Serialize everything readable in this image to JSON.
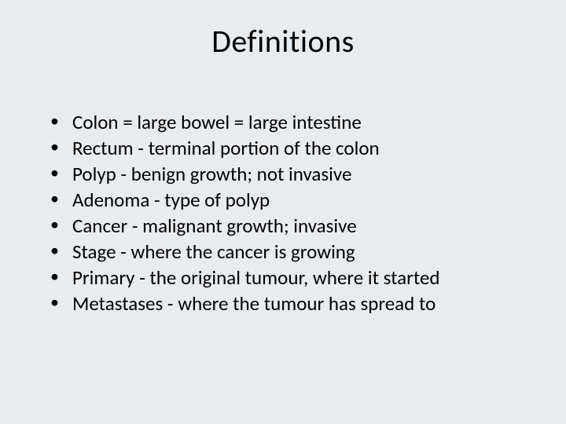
{
  "slide": {
    "background_color": "#e8ecef",
    "text_color": "#000000",
    "title": "Definitions",
    "title_fontsize": 40,
    "body_fontsize": 25,
    "bullets": [
      "Colon = large bowel = large intestine",
      "Rectum - terminal portion of the colon",
      "Polyp - benign growth; not invasive",
      "Adenoma - type of polyp",
      "Cancer - malignant growth; invasive",
      "Stage - where the cancer is growing",
      "Primary - the original tumour, where it started",
      "Metastases - where the tumour has spread to"
    ]
  }
}
